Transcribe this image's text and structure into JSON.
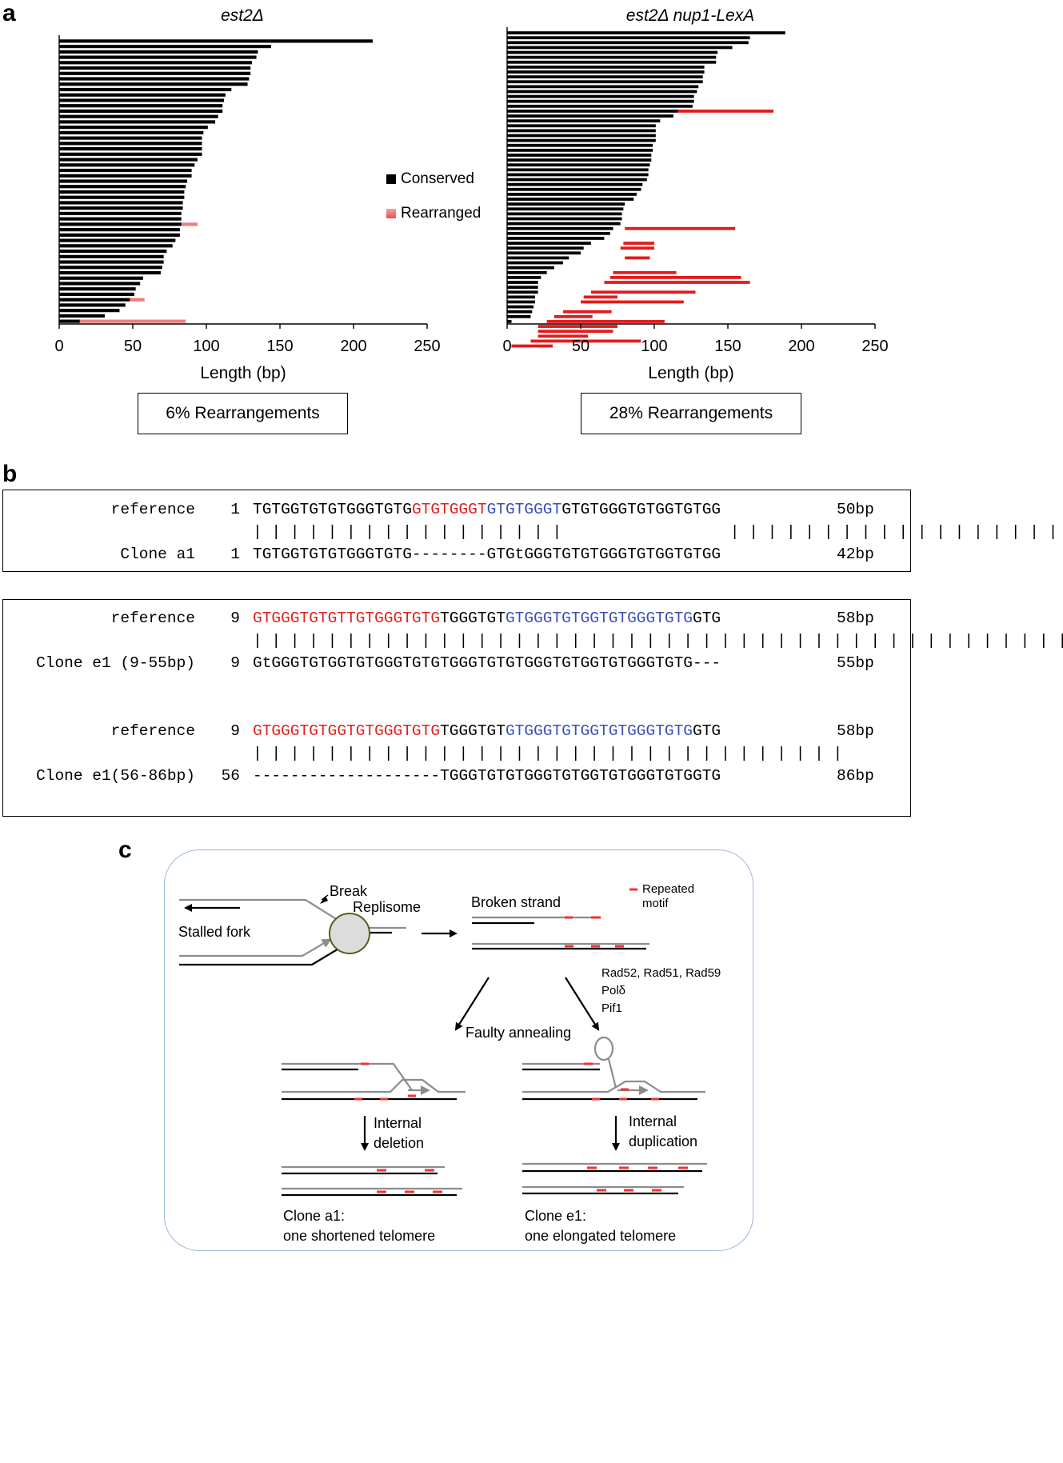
{
  "panels": {
    "a": {
      "letter": "a",
      "legend": [
        {
          "label": "Conserved",
          "color": "#000000"
        },
        {
          "label": "Rearranged",
          "color": "#e8696a"
        }
      ]
    },
    "b": {
      "letter": "b",
      "box1": {
        "rows": [
          {
            "name": "reference",
            "start": "1",
            "segments": [
              [
                "TGTGGTGTGTGGGTGTG",
                ""
              ],
              [
                "GTGTGGGT",
                "red"
              ],
              [
                "GTGTGGGT",
                "blue"
              ],
              [
                "GTGTGGGTGTGGTGTGG",
                ""
              ]
            ],
            "end": "50bp"
          },
          {
            "name": "match",
            "start": "",
            "segments": [
              [
                "| | | | | | | | | | | | | | | | |      ",
                ""
              ],
              [
                "            | | | | | | | | | | | | | | | | | |",
                ""
              ]
            ],
            "end": ""
          },
          {
            "name": "Clone a1",
            "start": "1",
            "segments": [
              [
                "TGTGGTGTGTGGGTGTG--------GTGtGGGTGTGTGGGTGTGGTGTGG",
                ""
              ]
            ],
            "end": "42bp"
          }
        ]
      },
      "box2": {
        "rows": [
          {
            "name": "reference",
            "start": "9",
            "segments": [
              [
                "GTGGGTGTGTTGTGGGTGTG",
                "red"
              ],
              [
                "TGGGTGT",
                ""
              ],
              [
                "GTGGGTGTGGTGTGGGTGTG",
                "blue"
              ],
              [
                "GTG",
                ""
              ]
            ],
            "end": "58bp"
          },
          {
            "name": "match",
            "start": "",
            "segments": [
              [
                "| | | | | | | | | | | | | | | | | | | | | | | | | | | | | | | | | | | | | | | | | | | |",
                ""
              ]
            ],
            "end": ""
          },
          {
            "name": "Clone e1 (9-55bp)",
            "start": "9",
            "segments": [
              [
                "GtGGGTGTGGTGTGGGTGTGTGGGTGTGTGGGTGTGGTGTGGGTGTG---",
                ""
              ]
            ],
            "end": "55bp"
          },
          {
            "name": "reference",
            "start": "9",
            "segments": [
              [
                "GTGGGTGTGGTGTGGGTGTG",
                "red"
              ],
              [
                "TGGGTGT",
                ""
              ],
              [
                "GTGGGTGTGGTGTGGGTGTG",
                "blue"
              ],
              [
                "GTG",
                ""
              ]
            ],
            "end": "58bp"
          },
          {
            "name": "match",
            "start": "",
            "segments": [
              [
                "| | | | | | | | | | | | | | | | | | | | | | | | | | | | | | | |",
                ""
              ]
            ],
            "end": ""
          },
          {
            "name": "Clone e1(56-86bp)",
            "start": "56",
            "segments": [
              [
                "--------------------TGGGTGTGTGGGTGTGGTGTGGGTGTGGTG",
                ""
              ]
            ],
            "end": "86bp"
          }
        ]
      }
    },
    "c": {
      "letter": "c",
      "labels": {
        "break": "Break",
        "replisome": "Replisome",
        "stalled_fork": "Stalled fork",
        "broken_strand": "Broken strand",
        "repeated_motif": "Repeated\nmotif",
        "proteins": [
          "Rad52, Rad51, Rad59",
          "Polδ",
          "Pif1"
        ],
        "faulty_annealing": "Faulty annealing",
        "internal_deletion": "Internal\ndeletion",
        "internal_duplication": "Internal\nduplication",
        "clone_a1": "Clone a1:\none shortened telomere",
        "clone_e1": "Clone e1:\none elongated telomere"
      }
    }
  },
  "chart_data": [
    {
      "type": "bar",
      "orientation": "horizontal",
      "title": "est2Δ",
      "xlabel": "Length (bp)",
      "xlim": [
        0,
        250
      ],
      "xticks": [
        0,
        50,
        100,
        150,
        200,
        250
      ],
      "summary": "6% Rearrangements",
      "series": [
        {
          "name": "Conserved",
          "color": "#000000",
          "values": [
            213,
            144,
            135,
            134,
            131,
            130,
            130,
            129,
            128,
            117,
            113,
            112,
            111,
            111,
            108,
            106,
            101,
            98,
            97,
            97,
            97,
            97,
            94,
            92,
            90,
            90,
            87,
            86,
            85,
            85,
            84,
            84,
            83,
            83,
            83,
            82,
            82,
            79,
            77,
            73,
            71,
            71,
            70,
            69,
            57,
            55,
            52,
            51,
            48,
            45,
            41,
            31,
            14
          ]
        },
        {
          "name": "Rearranged",
          "color": "#e8696a",
          "segments": [
            [
              34,
              83,
              94
            ],
            [
              48,
              47,
              58
            ],
            [
              52,
              14,
              86
            ]
          ]
        }
      ]
    },
    {
      "type": "bar",
      "orientation": "horizontal",
      "title": "est2Δ nup1-LexA",
      "xlabel": "Length (bp)",
      "xlim": [
        0,
        250
      ],
      "xticks": [
        0,
        50,
        100,
        150,
        200,
        250
      ],
      "summary": "28% Rearrangements",
      "series": [
        {
          "name": "Conserved",
          "color": "#000000",
          "values": [
            189,
            165,
            164,
            153,
            143,
            142,
            142,
            134,
            134,
            133,
            133,
            130,
            129,
            127,
            127,
            126,
            116,
            113,
            104,
            101,
            101,
            101,
            101,
            99,
            99,
            98,
            98,
            97,
            96,
            96,
            95,
            92,
            91,
            88,
            86,
            80,
            79,
            78,
            78,
            77,
            72,
            70,
            66,
            57,
            52,
            50,
            42,
            38,
            32,
            27,
            23,
            21,
            21,
            21,
            19,
            19,
            18,
            17,
            16,
            3
          ]
        },
        {
          "name": "Rearranged",
          "color": "#e41a1c",
          "segments": [
            [
              16,
              116,
              181
            ],
            [
              40,
              80,
              155
            ],
            [
              43,
              79,
              100
            ],
            [
              44,
              77,
              100
            ],
            [
              46,
              80,
              97
            ],
            [
              49,
              72,
              115
            ],
            [
              50,
              70,
              159
            ],
            [
              51,
              66,
              165
            ],
            [
              53,
              57,
              128
            ],
            [
              54,
              52,
              75
            ],
            [
              55,
              50,
              120
            ],
            [
              57,
              38,
              71
            ],
            [
              58,
              32,
              58
            ],
            [
              59,
              27,
              107
            ],
            [
              60,
              21,
              75
            ],
            [
              61,
              21,
              72
            ],
            [
              62,
              21,
              55
            ],
            [
              63,
              16,
              91
            ],
            [
              64,
              3,
              31
            ]
          ]
        }
      ]
    }
  ]
}
